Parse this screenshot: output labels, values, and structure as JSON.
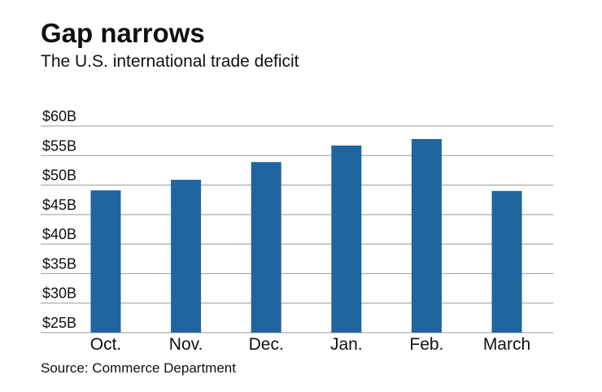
{
  "chart_data": {
    "type": "bar",
    "title": "Gap narrows",
    "subtitle": "The U.S. international trade deficit",
    "source": "Source: Commerce Department",
    "categories": [
      "Oct.",
      "Nov.",
      "Dec.",
      "Jan.",
      "Feb.",
      "March"
    ],
    "values": [
      49.1,
      50.9,
      53.9,
      56.7,
      57.8,
      49.0
    ],
    "color": "#1f65a0",
    "ylim": [
      25,
      60
    ],
    "yticks": [
      {
        "value": 25,
        "label": "$25B"
      },
      {
        "value": 30,
        "label": "$30B"
      },
      {
        "value": 35,
        "label": "$35B"
      },
      {
        "value": 40,
        "label": "$40B"
      },
      {
        "value": 45,
        "label": "$45B"
      },
      {
        "value": 50,
        "label": "$50B"
      },
      {
        "value": 55,
        "label": "$55B"
      },
      {
        "value": 60,
        "label": "$60B"
      }
    ],
    "grid": true
  }
}
